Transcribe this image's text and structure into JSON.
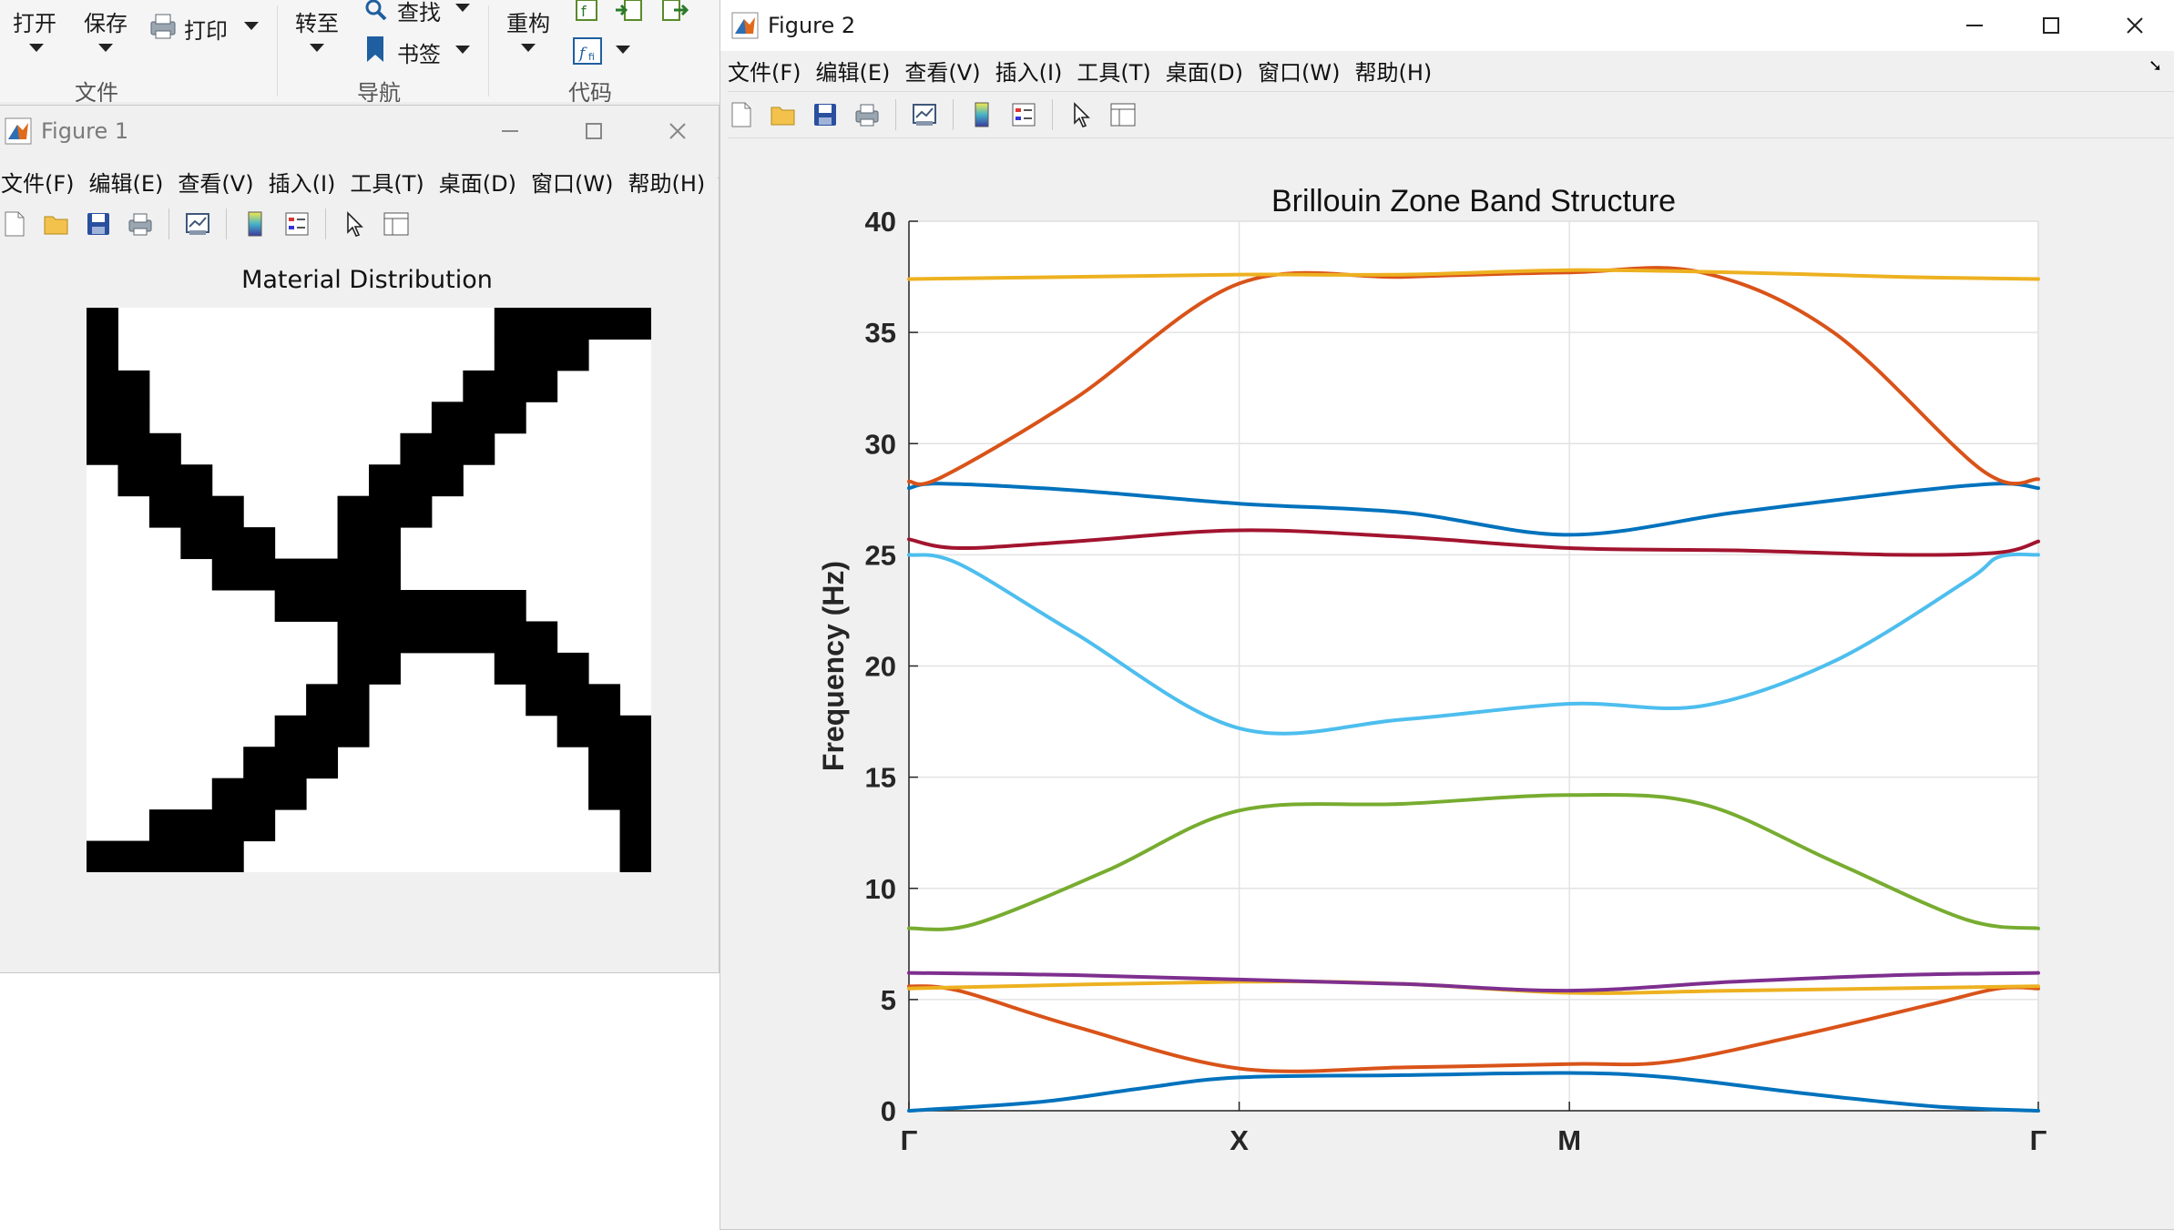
{
  "toolstrip": {
    "buttons": {
      "open": "打开",
      "save": "保存",
      "print": "打印",
      "goto": "转至",
      "find": "查找",
      "bookmark": "书签",
      "refactor": "重构"
    },
    "groups": {
      "file": "文件",
      "navigate": "导航",
      "code": "代码"
    }
  },
  "menus": [
    "文件(F)",
    "编辑(E)",
    "查看(V)",
    "插入(I)",
    "工具(T)",
    "桌面(D)",
    "窗口(W)",
    "帮助(H)"
  ],
  "figure1": {
    "title": "Figure 1",
    "plot_title": "Material Distribution"
  },
  "figure2": {
    "title": "Figure 2",
    "chart_data": {
      "type": "line",
      "title": "Brillouin Zone Band Structure",
      "xlabel": "",
      "ylabel": "Frequency (Hz)",
      "x_tick_labels": [
        "Γ",
        "X",
        "M",
        "Γ"
      ],
      "x_tick_positions": [
        0,
        1,
        2,
        3.42
      ],
      "xlim": [
        0,
        3.42
      ],
      "ylim": [
        0,
        40
      ],
      "y_ticks": [
        0,
        5,
        10,
        15,
        20,
        25,
        30,
        35,
        40
      ],
      "grid": true,
      "series": [
        {
          "color": "#0072BD",
          "points": [
            [
              0,
              0
            ],
            [
              0.4,
              0.4
            ],
            [
              0.7,
              1.0
            ],
            [
              1,
              1.5
            ],
            [
              1.5,
              1.6
            ],
            [
              2,
              1.7
            ],
            [
              2.3,
              1.5
            ],
            [
              2.7,
              0.8
            ],
            [
              3.1,
              0.2
            ],
            [
              3.42,
              0
            ]
          ]
        },
        {
          "color": "#D95319",
          "points": [
            [
              0,
              5.6
            ],
            [
              0.15,
              5.4
            ],
            [
              0.5,
              3.8
            ],
            [
              1,
              1.9
            ],
            [
              1.5,
              1.95
            ],
            [
              2,
              2.1
            ],
            [
              2.3,
              2.2
            ],
            [
              2.7,
              3.4
            ],
            [
              3.1,
              4.8
            ],
            [
              3.3,
              5.5
            ],
            [
              3.42,
              5.5
            ]
          ]
        },
        {
          "color": "#EDB120",
          "points": [
            [
              0,
              5.5
            ],
            [
              1,
              5.8
            ],
            [
              1.5,
              5.7
            ],
            [
              2,
              5.3
            ],
            [
              2.5,
              5.4
            ],
            [
              3.42,
              5.6
            ]
          ]
        },
        {
          "color": "#7E2F8E",
          "points": [
            [
              0,
              6.2
            ],
            [
              0.5,
              6.1
            ],
            [
              1,
              5.9
            ],
            [
              1.5,
              5.7
            ],
            [
              2,
              5.4
            ],
            [
              2.5,
              5.8
            ],
            [
              3,
              6.1
            ],
            [
              3.42,
              6.2
            ]
          ]
        },
        {
          "color": "#77AC30",
          "points": [
            [
              0,
              8.2
            ],
            [
              0.2,
              8.4
            ],
            [
              0.6,
              10.8
            ],
            [
              1,
              13.5
            ],
            [
              1.5,
              13.8
            ],
            [
              2,
              14.2
            ],
            [
              2.4,
              13.8
            ],
            [
              2.8,
              11.2
            ],
            [
              3.2,
              8.6
            ],
            [
              3.42,
              8.2
            ]
          ]
        },
        {
          "color": "#4DBEEE",
          "points": [
            [
              0,
              25
            ],
            [
              0.15,
              24.6
            ],
            [
              0.5,
              21.5
            ],
            [
              1,
              17.2
            ],
            [
              1.5,
              17.6
            ],
            [
              2,
              18.3
            ],
            [
              2.4,
              18.2
            ],
            [
              2.8,
              20.2
            ],
            [
              3.2,
              23.8
            ],
            [
              3.3,
              24.9
            ],
            [
              3.42,
              25
            ]
          ]
        },
        {
          "color": "#A2142F",
          "points": [
            [
              0,
              25.7
            ],
            [
              0.15,
              25.3
            ],
            [
              0.5,
              25.6
            ],
            [
              1,
              26.1
            ],
            [
              1.5,
              25.8
            ],
            [
              2,
              25.3
            ],
            [
              2.5,
              25.2
            ],
            [
              3,
              25
            ],
            [
              3.3,
              25.1
            ],
            [
              3.42,
              25.6
            ]
          ]
        },
        {
          "color": "#0072BD",
          "points": [
            [
              0,
              28
            ],
            [
              0.1,
              28.2
            ],
            [
              0.5,
              27.9
            ],
            [
              1,
              27.3
            ],
            [
              1.5,
              26.9
            ],
            [
              2,
              25.9
            ],
            [
              2.5,
              26.9
            ],
            [
              3,
              27.8
            ],
            [
              3.3,
              28.2
            ],
            [
              3.42,
              28
            ]
          ]
        },
        {
          "color": "#D95319",
          "points": [
            [
              0,
              28.3
            ],
            [
              0.1,
              28.5
            ],
            [
              0.5,
              32
            ],
            [
              1,
              37.2
            ],
            [
              1.5,
              37.5
            ],
            [
              2,
              37.7
            ],
            [
              2.4,
              37.7
            ],
            [
              2.8,
              35
            ],
            [
              3.25,
              28.8
            ],
            [
              3.42,
              28.4
            ]
          ]
        },
        {
          "color": "#EDB120",
          "points": [
            [
              0,
              37.4
            ],
            [
              0.5,
              37.5
            ],
            [
              1,
              37.6
            ],
            [
              1.5,
              37.6
            ],
            [
              2,
              37.8
            ],
            [
              2.5,
              37.7
            ],
            [
              3,
              37.5
            ],
            [
              3.42,
              37.4
            ]
          ]
        }
      ]
    }
  }
}
